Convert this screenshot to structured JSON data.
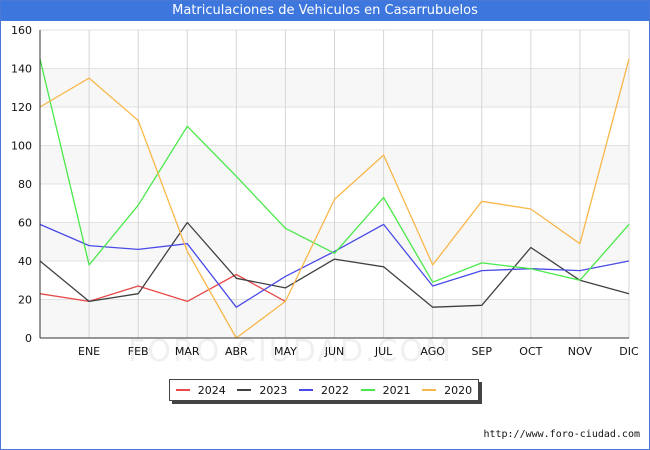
{
  "title": "Matriculaciones de Vehiculos en Casarrubuelos",
  "source": "http://www.foro-ciudad.com",
  "watermark": "FORO-CIUDAD.COM",
  "chart_data": {
    "type": "line",
    "title": "Matriculaciones de Vehiculos en Casarrubuelos",
    "x": [
      "",
      "ENE",
      "FEB",
      "MAR",
      "ABR",
      "MAY",
      "JUN",
      "JUL",
      "AGO",
      "SEP",
      "OCT",
      "NOV",
      "DIC"
    ],
    "ylim": [
      0,
      160
    ],
    "yticks": [
      0,
      20,
      40,
      60,
      80,
      100,
      120,
      140,
      160
    ],
    "grid": true,
    "legend_position": "bottom",
    "series": [
      {
        "name": "2024",
        "color": "#e84a4a",
        "values": [
          23,
          19,
          27,
          19,
          33,
          19,
          null,
          null,
          null,
          null,
          null,
          null,
          null
        ]
      },
      {
        "name": "2023",
        "color": "#404040",
        "values": [
          40,
          19,
          23,
          60,
          31,
          26,
          41,
          37,
          16,
          17,
          47,
          30,
          23
        ]
      },
      {
        "name": "2022",
        "color": "#4a4ae8",
        "values": [
          59,
          48,
          46,
          49,
          16,
          32,
          45,
          59,
          27,
          35,
          36,
          35,
          40
        ]
      },
      {
        "name": "2021",
        "color": "#4ae84a",
        "values": [
          145,
          38,
          69,
          110,
          84,
          57,
          44,
          73,
          29,
          39,
          36,
          30,
          59
        ]
      },
      {
        "name": "2020",
        "color": "#f8b74a",
        "values": [
          120,
          135,
          113,
          45,
          0,
          19,
          72,
          95,
          38,
          71,
          67,
          49,
          145
        ]
      }
    ]
  }
}
